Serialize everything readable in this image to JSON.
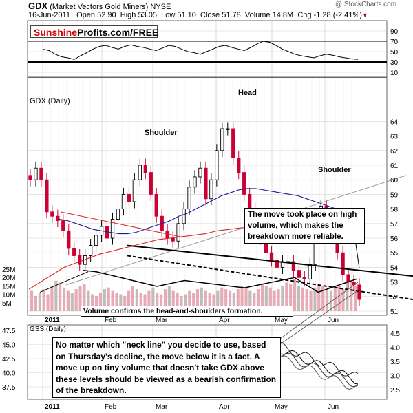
{
  "header": {
    "symbol": "GDX",
    "name": "(Market Vectors Gold Miners) NYSE",
    "date": "16-Jun-2011",
    "open_label": "Open",
    "open": "52.90",
    "high_label": "High",
    "high": "53.05",
    "low_label": "Low",
    "low": "51.10",
    "close_label": "Close",
    "close": "51.78",
    "volume_label": "Volume",
    "volume": "14.8M",
    "chg_label": "Chg",
    "chg": "-1.28 (-2.41%)",
    "watermark": "@ StockCharts.com"
  },
  "brand": {
    "part1": "Sunshine",
    "part2": "Profits.com/FREE"
  },
  "annotations": {
    "head": "Head",
    "shoulder_left": "Shoulder",
    "shoulder_right": "Shoulder",
    "volume_note": "Volume confirms the head-and-shoulders formation.",
    "breakdown_note": "The move took place on high volume, which makes the breakdown more reliable.",
    "neckline_note": "No matter which \"neck line\" you decide to use, based on Thursday's decline, the move below it is a fact. A move up on tiny volume that doesn't take GDX above these levels should be viewed as a bearish confirmation of the breakdown."
  },
  "colors": {
    "up": "#000000",
    "down": "#cc0033",
    "ma50": "#1a1a99",
    "ma200": "#dd2222",
    "volume": "#e8aab4"
  },
  "chart_data": [
    {
      "type": "line",
      "panel": "indicator-top",
      "ylim": [
        0,
        100
      ],
      "y_ticks": [
        10,
        30,
        50,
        70,
        90
      ],
      "reference_lines": [
        30,
        70
      ],
      "values": [
        55,
        52,
        45,
        40,
        38,
        35,
        42,
        48,
        55,
        60,
        62,
        58,
        55,
        60,
        63,
        60,
        58,
        55,
        52,
        57,
        62,
        60,
        55,
        50,
        48,
        45,
        50,
        55,
        60,
        62,
        58,
        55,
        52,
        58,
        65,
        70,
        68,
        62,
        55,
        50,
        45,
        42,
        40,
        38,
        42,
        45,
        43,
        40,
        38,
        36,
        35
      ]
    },
    {
      "type": "candlestick",
      "panel": "price",
      "title": "GDX (Daily)",
      "ylim": [
        51,
        65
      ],
      "y_ticks": [
        51,
        52,
        53,
        54,
        55,
        56,
        57,
        58,
        59,
        60,
        61,
        62,
        63,
        64
      ],
      "x_labels": [
        "2011",
        "Feb",
        "Mar",
        "Apr",
        "May",
        "Jun"
      ],
      "close": [
        60,
        60.8,
        60,
        57.8,
        57.5,
        57.2,
        56.5,
        55.3,
        54.8,
        54.2,
        54.8,
        55.5,
        56.2,
        56.8,
        56,
        57.3,
        58,
        59,
        58.5,
        60,
        61,
        60.5,
        59,
        57.5,
        56.5,
        56,
        55.8,
        57,
        58,
        59.5,
        60.2,
        60.8,
        58.7,
        60,
        62,
        63.5,
        63.5,
        61.5,
        60.5,
        59,
        58,
        57,
        56,
        55,
        54.5,
        54,
        54.4,
        54.4,
        53.8,
        53.3,
        53.2,
        54.2,
        57.5,
        58.2,
        57,
        56.5,
        55,
        53.5,
        53,
        52.8,
        51.8
      ],
      "ma50": [
        57.3,
        57.2,
        57,
        56.8,
        56.6,
        56.5,
        56.4,
        56.3,
        56.3,
        56.4,
        56.6,
        56.8,
        57,
        57.2,
        57.5,
        57.7,
        58,
        58.3,
        58.6,
        58.9,
        59.1,
        59.3,
        59.4,
        59.4,
        59.3,
        59.2,
        59.1,
        59,
        58.9,
        58.7,
        58.5,
        58.3,
        58.1,
        57.9,
        57.8,
        57.6
      ],
      "ma200": [
        52.5,
        53,
        53.5,
        54,
        54.3,
        54.6,
        54.9,
        55.1,
        55.3,
        55.5,
        55.7,
        55.9,
        56,
        56.1,
        56.2,
        56.3,
        56.5,
        56.6,
        56.7,
        56.8,
        56.9,
        57,
        57.1,
        57.2,
        57.3,
        57.4,
        57.5,
        57.6,
        57.7
      ],
      "annotations": [
        "Head",
        "Shoulder",
        "Shoulder"
      ]
    },
    {
      "type": "bar",
      "panel": "volume",
      "y_ticks": [
        "5M",
        "10M",
        "15M",
        "20M",
        "25M"
      ],
      "values": [
        12,
        9,
        11,
        13,
        10,
        15,
        18,
        17,
        14,
        12,
        11,
        13,
        15,
        16,
        12,
        10,
        9,
        11,
        13,
        14,
        12,
        11,
        10,
        9,
        12,
        15,
        13,
        11,
        10,
        12,
        14,
        11,
        10,
        13,
        15,
        12,
        11,
        9,
        10,
        12,
        11,
        13,
        14,
        12,
        11,
        10,
        12,
        14,
        13,
        12,
        11,
        13,
        15,
        14,
        12,
        11,
        13,
        16,
        15,
        14,
        12,
        13,
        15,
        17,
        16,
        19,
        15,
        14,
        13,
        12,
        14,
        16,
        15,
        13,
        12,
        14,
        15,
        13,
        17,
        18,
        15
      ]
    },
    {
      "type": "line",
      "panel": "gss",
      "title": "GSS (Daily)",
      "y_ticks_left": [
        37.5,
        40.0,
        42.5,
        45.0,
        47.5
      ],
      "y_ticks_right": [
        2.5,
        3.0,
        3.5,
        4.0,
        4.5
      ],
      "x_labels": [
        "2011",
        "Feb",
        "Mar",
        "Apr",
        "May",
        "Jun"
      ]
    }
  ]
}
